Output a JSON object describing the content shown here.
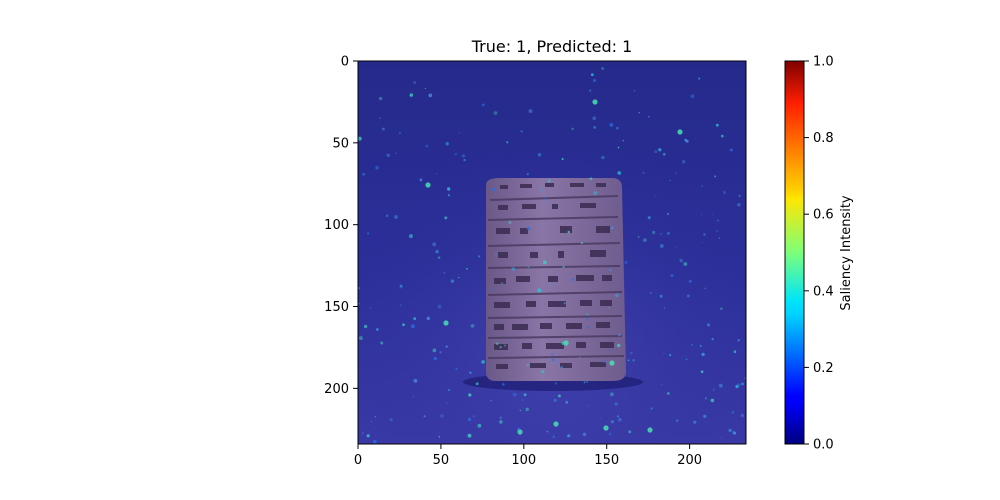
{
  "chart_data": {
    "type": "heatmap",
    "title": "True: 1, Predicted: 1",
    "xlabel": "",
    "ylabel": "",
    "xlim": [
      0,
      234
    ],
    "ylim": [
      234,
      0
    ],
    "x_ticks": [
      0,
      50,
      100,
      150,
      200
    ],
    "y_ticks": [
      0,
      50,
      100,
      150,
      200
    ],
    "x_tick_labels": [
      "0",
      "50",
      "100",
      "150",
      "200"
    ],
    "y_tick_labels": [
      "0",
      "50",
      "100",
      "150",
      "200"
    ],
    "grid": false,
    "colormap": "jet",
    "colorbar": {
      "label": "Saliency Intensity",
      "range": [
        0,
        1
      ],
      "ticks": [
        0.0,
        0.2,
        0.4,
        0.6,
        0.8,
        1.0
      ],
      "tick_labels": [
        "0.0",
        "0.2",
        "0.4",
        "0.6",
        "0.8",
        "1.0"
      ]
    },
    "image_subject": "clay tablet with cuneiform inscription overlaid with saliency heatmap",
    "colors": {
      "background_overlay": "#2a2a8c",
      "tablet": "#7e6a9a",
      "hotspot": "#3fd0b0"
    }
  }
}
